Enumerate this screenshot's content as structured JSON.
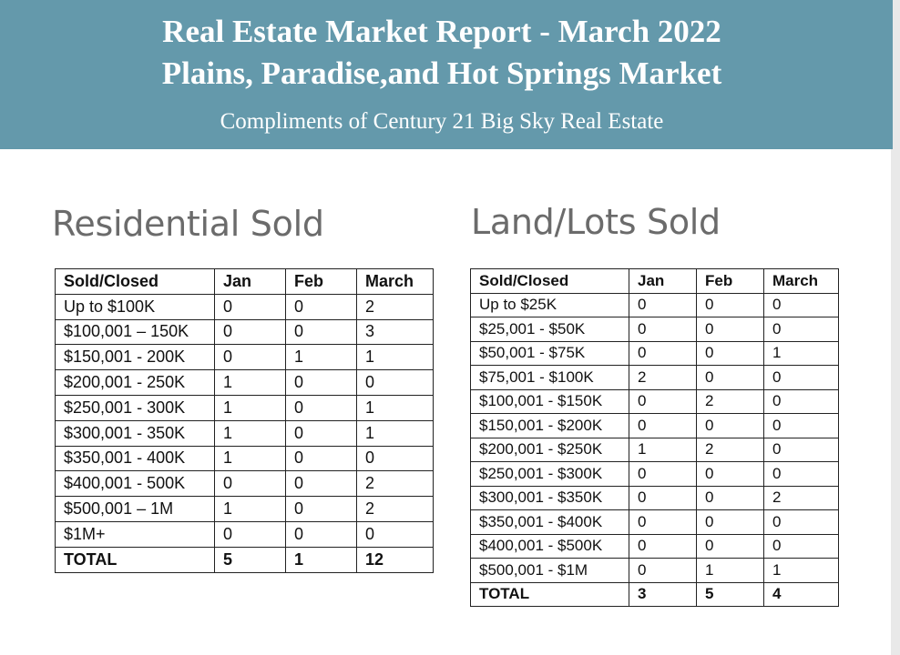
{
  "header": {
    "title_line1": "Real Estate Market Report - March 2022",
    "title_line2": "Plains, Paradise,and Hot Springs Market",
    "subtitle": "Compliments of Century 21 Big Sky Real Estate"
  },
  "residential": {
    "title": "Residential Sold",
    "columns": [
      "Sold/Closed",
      "Jan",
      "Feb",
      "March"
    ],
    "rows": [
      [
        "Up to $100K",
        "0",
        "0",
        "2"
      ],
      [
        "$100,001 – 150K",
        "0",
        "0",
        "3"
      ],
      [
        "$150,001 - 200K",
        "0",
        "1",
        "1"
      ],
      [
        "$200,001 - 250K",
        "1",
        "0",
        "0"
      ],
      [
        "$250,001 - 300K",
        "1",
        "0",
        "1"
      ],
      [
        "$300,001 - 350K",
        "1",
        "0",
        "1"
      ],
      [
        "$350,001 - 400K",
        "1",
        "0",
        "0"
      ],
      [
        "$400,001 - 500K",
        "0",
        "0",
        "2"
      ],
      [
        "$500,001 – 1M",
        "1",
        "0",
        "2"
      ],
      [
        "$1M+",
        "0",
        "0",
        "0"
      ]
    ],
    "total": [
      "TOTAL",
      "5",
      "1",
      "12"
    ]
  },
  "land": {
    "title": "Land/Lots Sold",
    "columns": [
      "Sold/Closed",
      "Jan",
      "Feb",
      "March"
    ],
    "rows": [
      [
        "Up to $25K",
        "0",
        "0",
        "0"
      ],
      [
        "$25,001 - $50K",
        "0",
        "0",
        "0"
      ],
      [
        "$50,001 - $75K",
        "0",
        "0",
        "1"
      ],
      [
        "$75,001 - $100K",
        "2",
        "0",
        "0"
      ],
      [
        "$100,001 - $150K",
        "0",
        "2",
        "0"
      ],
      [
        "$150,001 - $200K",
        "0",
        "0",
        "0"
      ],
      [
        "$200,001 - $250K",
        "1",
        "2",
        "0"
      ],
      [
        "$250,001 - $300K",
        "0",
        "0",
        "0"
      ],
      [
        "$300,001 - $350K",
        "0",
        "0",
        "2"
      ],
      [
        "$350,001 - $400K",
        "0",
        "0",
        "0"
      ],
      [
        "$400,001 - $500K",
        "0",
        "0",
        "0"
      ],
      [
        "$500,001 - $1M",
        "0",
        "1",
        "1"
      ]
    ],
    "total": [
      "TOTAL",
      "3",
      "5",
      "4"
    ]
  }
}
